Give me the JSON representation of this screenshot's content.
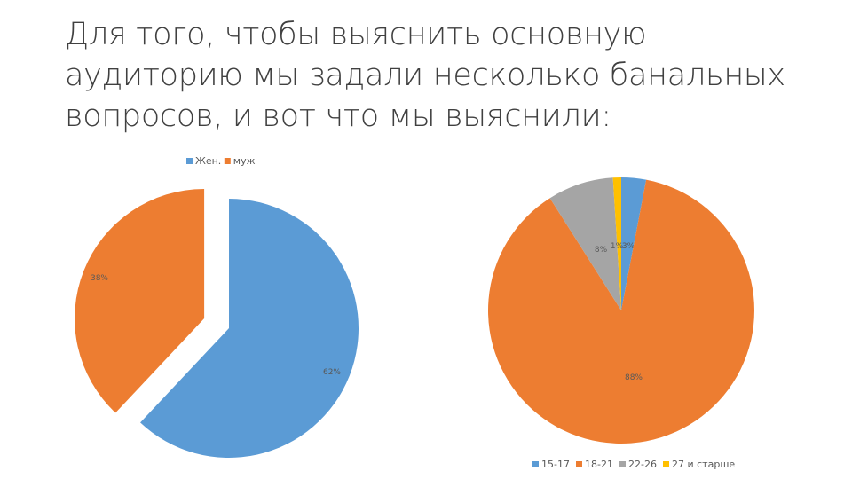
{
  "slide": {
    "title": "Для того, чтобы выяснить основную аудиторию мы задали несколько банальных вопросов, и вот что мы выяснили:"
  },
  "chart_data": [
    {
      "type": "pie",
      "title": "",
      "categories": [
        "Жен.",
        "муж"
      ],
      "values": [
        62,
        38
      ],
      "data_labels": [
        "62%",
        "38%"
      ],
      "colors": [
        "#5B9BD5",
        "#ED7D31"
      ],
      "exploded": true,
      "legend": "top"
    },
    {
      "type": "pie",
      "title": "",
      "categories": [
        "15-17",
        "18-21",
        "22-26",
        "27 и старше"
      ],
      "values": [
        3,
        88,
        8,
        1
      ],
      "data_labels": [
        "3%",
        "88%",
        "8%",
        "1%"
      ],
      "colors": [
        "#5B9BD5",
        "#ED7D31",
        "#A5A5A5",
        "#FFC000"
      ],
      "legend": "bottom"
    }
  ]
}
